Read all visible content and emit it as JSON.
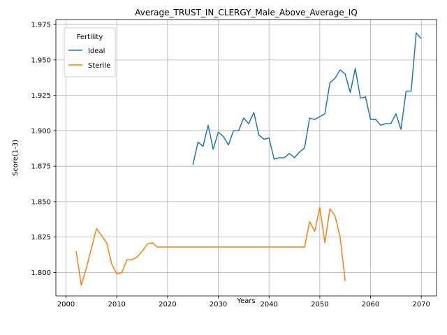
{
  "chart_data": {
    "type": "line",
    "title": "Average_TRUST_IN_CLERGY_Male_Above_Average_IQ",
    "xlabel": "Years",
    "ylabel": "Score(1-3)",
    "xlim": [
      1998,
      2073
    ],
    "ylim": [
      1.7835,
      1.9785
    ],
    "x_ticks": [
      "2000",
      "2010",
      "2020",
      "2030",
      "2040",
      "2050",
      "2060",
      "2070"
    ],
    "y_ticks": [
      "1.800",
      "1.825",
      "1.850",
      "1.875",
      "1.900",
      "1.925",
      "1.950",
      "1.975"
    ],
    "grid": true,
    "legend": {
      "title": "Fertility",
      "placement": "upper-left"
    },
    "series": [
      {
        "name": "Ideal",
        "color": "#1f77b4",
        "x": [
          2025,
          2026,
          2027,
          2028,
          2029,
          2030,
          2031,
          2032,
          2033,
          2034,
          2035,
          2036,
          2037,
          2038,
          2039,
          2040,
          2041,
          2042,
          2043,
          2044,
          2045,
          2046,
          2047,
          2048,
          2049,
          2050,
          2051,
          2052,
          2053,
          2054,
          2055,
          2056,
          2057,
          2058,
          2059,
          2060,
          2061,
          2062,
          2063,
          2064,
          2065,
          2066,
          2067,
          2068,
          2069,
          2070
        ],
        "values": [
          1.876,
          1.892,
          1.889,
          1.904,
          1.887,
          1.899,
          1.896,
          1.89,
          1.9,
          1.9,
          1.909,
          1.905,
          1.913,
          1.897,
          1.894,
          1.895,
          1.88,
          1.881,
          1.881,
          1.884,
          1.881,
          1.885,
          1.888,
          1.909,
          1.908,
          1.91,
          1.912,
          1.934,
          1.937,
          1.943,
          1.94,
          1.927,
          1.944,
          1.923,
          1.924,
          1.908,
          1.908,
          1.904,
          1.905,
          1.905,
          1.912,
          1.901,
          1.928,
          1.928,
          1.969,
          1.965
        ]
      },
      {
        "name": "Sterile",
        "color": "#ff7f0e",
        "x": [
          2002,
          2003,
          2004,
          2005,
          2006,
          2007,
          2008,
          2009,
          2010,
          2011,
          2012,
          2013,
          2014,
          2015,
          2016,
          2017,
          2018,
          2019,
          2020,
          2021,
          2022,
          2023,
          2024,
          2025,
          2026,
          2027,
          2028,
          2029,
          2030,
          2031,
          2032,
          2033,
          2034,
          2035,
          2036,
          2037,
          2038,
          2039,
          2040,
          2041,
          2042,
          2043,
          2044,
          2045,
          2046,
          2047,
          2048,
          2049,
          2050,
          2051,
          2052,
          2053,
          2054,
          2055
        ],
        "values": [
          1.815,
          1.791,
          1.803,
          1.817,
          1.831,
          1.826,
          1.821,
          1.806,
          1.799,
          1.8,
          1.809,
          1.809,
          1.811,
          1.815,
          1.82,
          1.821,
          1.818,
          1.818,
          1.818,
          1.818,
          1.818,
          1.818,
          1.818,
          1.818,
          1.818,
          1.818,
          1.818,
          1.818,
          1.818,
          1.818,
          1.818,
          1.818,
          1.818,
          1.818,
          1.818,
          1.818,
          1.818,
          1.818,
          1.818,
          1.818,
          1.818,
          1.818,
          1.818,
          1.818,
          1.818,
          1.818,
          1.836,
          1.829,
          1.846,
          1.821,
          1.845,
          1.84,
          1.825,
          1.794
        ]
      }
    ]
  }
}
